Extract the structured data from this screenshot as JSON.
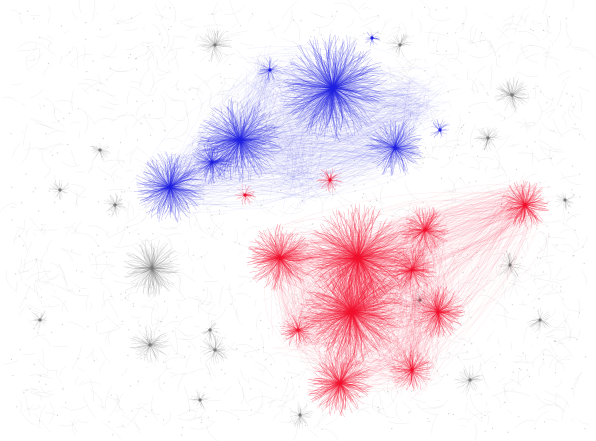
{
  "colors": {
    "background": "#ffffff",
    "blue_community": "#1f1fe0",
    "red_community": "#f0102e",
    "grey_community": "#7a7a7a"
  },
  "communities": [
    {
      "name": "blue",
      "color_key": "blue_community"
    },
    {
      "name": "red",
      "color_key": "red_community"
    },
    {
      "name": "grey",
      "color_key": "grey_community"
    }
  ]
}
